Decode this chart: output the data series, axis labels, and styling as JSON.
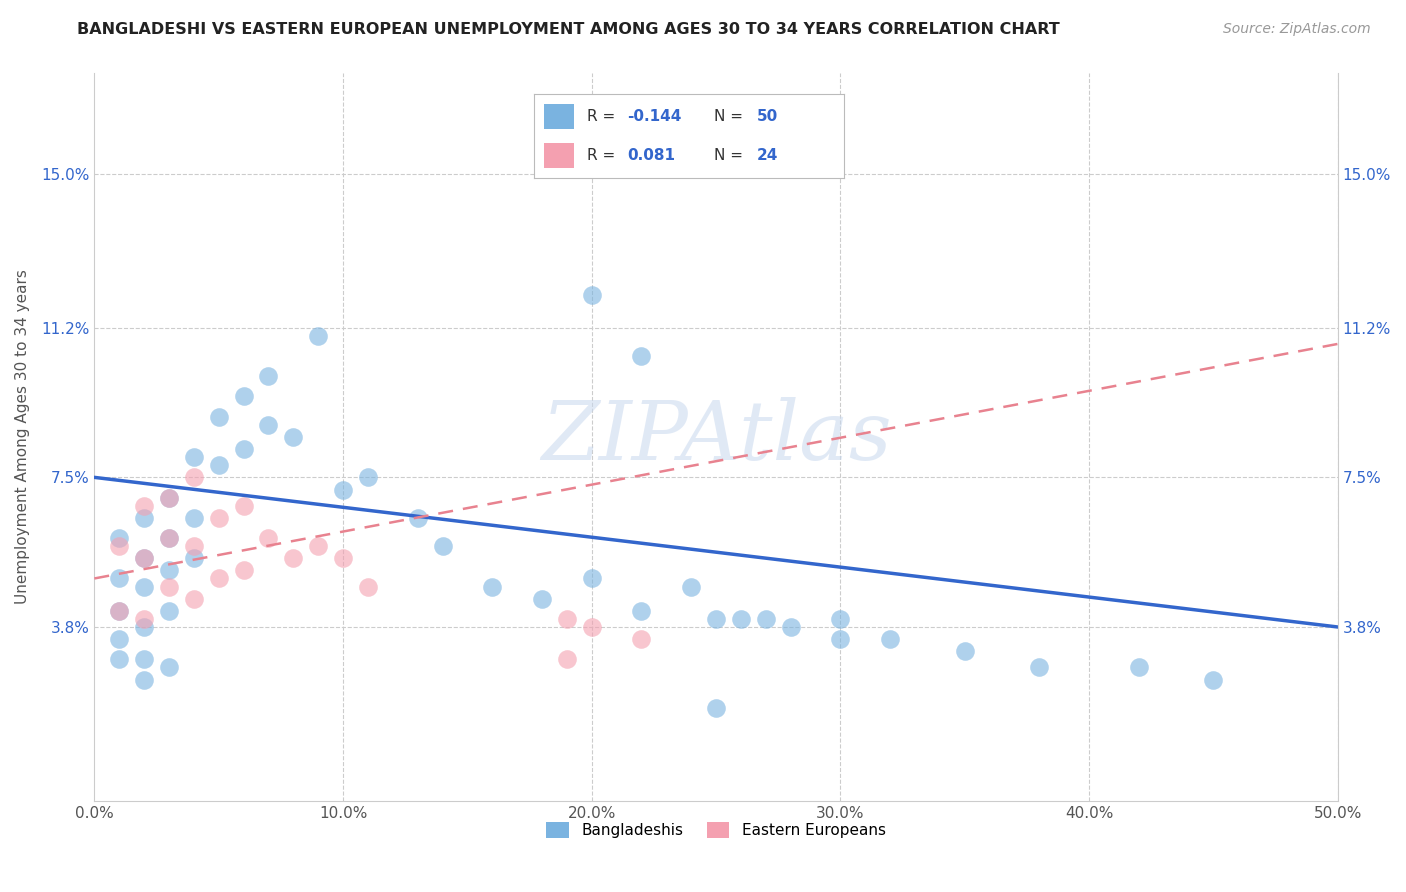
{
  "title": "BANGLADESHI VS EASTERN EUROPEAN UNEMPLOYMENT AMONG AGES 30 TO 34 YEARS CORRELATION CHART",
  "source": "Source: ZipAtlas.com",
  "ylabel": "Unemployment Among Ages 30 to 34 years",
  "xlim": [
    0.0,
    0.5
  ],
  "ylim": [
    -0.005,
    0.175
  ],
  "xtick_labels": [
    "0.0%",
    "10.0%",
    "20.0%",
    "30.0%",
    "40.0%",
    "50.0%"
  ],
  "xtick_values": [
    0.0,
    0.1,
    0.2,
    0.3,
    0.4,
    0.5
  ],
  "ytick_labels": [
    "3.8%",
    "7.5%",
    "11.2%",
    "15.0%"
  ],
  "ytick_values": [
    0.038,
    0.075,
    0.112,
    0.15
  ],
  "legend_label1": "Bangladeshis",
  "legend_label2": "Eastern Europeans",
  "R1": "-0.144",
  "N1": "50",
  "R2": "0.081",
  "N2": "24",
  "color1": "#7ab3e0",
  "color2": "#f4a0b0",
  "line1_color": "#3366cc",
  "line2_color": "#e8828f",
  "watermark": "ZIPAtlas",
  "bg_color": "#ffffff",
  "grid_color": "#cccccc",
  "bangladeshi_x": [
    0.01,
    0.01,
    0.01,
    0.01,
    0.01,
    0.02,
    0.02,
    0.02,
    0.02,
    0.02,
    0.02,
    0.03,
    0.03,
    0.03,
    0.03,
    0.03,
    0.04,
    0.04,
    0.04,
    0.05,
    0.05,
    0.06,
    0.06,
    0.07,
    0.07,
    0.08,
    0.09,
    0.1,
    0.11,
    0.13,
    0.14,
    0.16,
    0.18,
    0.2,
    0.22,
    0.24,
    0.26,
    0.28,
    0.3,
    0.32,
    0.25,
    0.3,
    0.35,
    0.38,
    0.42,
    0.45,
    0.2,
    0.22,
    0.27,
    0.25
  ],
  "bangladeshi_y": [
    0.06,
    0.05,
    0.042,
    0.035,
    0.03,
    0.065,
    0.055,
    0.048,
    0.038,
    0.03,
    0.025,
    0.07,
    0.06,
    0.052,
    0.042,
    0.028,
    0.08,
    0.065,
    0.055,
    0.09,
    0.078,
    0.095,
    0.082,
    0.1,
    0.088,
    0.085,
    0.11,
    0.072,
    0.075,
    0.065,
    0.058,
    0.048,
    0.045,
    0.05,
    0.042,
    0.048,
    0.04,
    0.038,
    0.04,
    0.035,
    0.04,
    0.035,
    0.032,
    0.028,
    0.028,
    0.025,
    0.12,
    0.105,
    0.04,
    0.018
  ],
  "eastern_x": [
    0.01,
    0.01,
    0.02,
    0.02,
    0.02,
    0.03,
    0.03,
    0.03,
    0.04,
    0.04,
    0.04,
    0.05,
    0.05,
    0.06,
    0.06,
    0.07,
    0.08,
    0.09,
    0.1,
    0.11,
    0.19,
    0.19,
    0.2,
    0.22
  ],
  "eastern_y": [
    0.058,
    0.042,
    0.068,
    0.055,
    0.04,
    0.07,
    0.06,
    0.048,
    0.075,
    0.058,
    0.045,
    0.065,
    0.05,
    0.068,
    0.052,
    0.06,
    0.055,
    0.058,
    0.055,
    0.048,
    0.04,
    0.03,
    0.038,
    0.035
  ],
  "line1_x0": 0.0,
  "line1_y0": 0.075,
  "line1_x1": 0.5,
  "line1_y1": 0.038,
  "line2_x0": 0.0,
  "line2_y0": 0.05,
  "line2_x1": 0.5,
  "line2_y1": 0.108
}
